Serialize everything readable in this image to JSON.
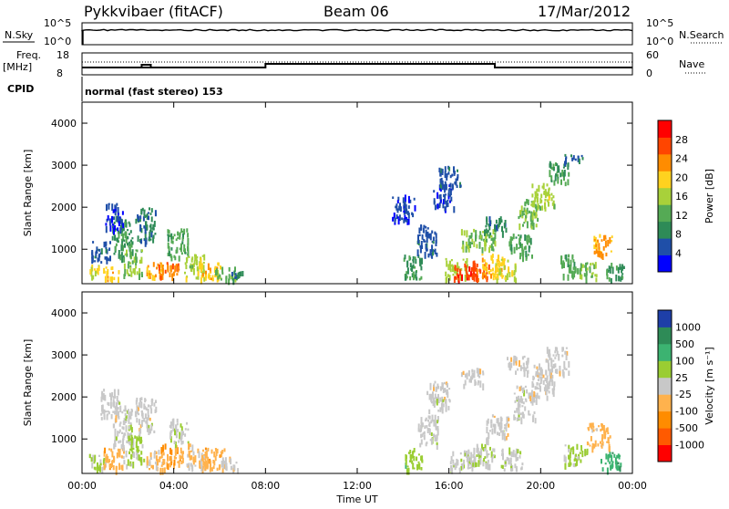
{
  "header": {
    "station": "Pykkvibaer (fitACF)",
    "beam": "Beam 06",
    "date": "17/Mar/2012"
  },
  "top_panels": {
    "nsky_label": "N.Sky",
    "nsearch_label": "N.Search",
    "nsky_ticks": [
      "10^5",
      "10^0"
    ],
    "nsearch_ticks": [
      "10^5",
      "10^0"
    ],
    "freq_label_line1": "Freq.",
    "freq_label_line2": "[MHz]",
    "freq_ticks": [
      "18",
      "8"
    ],
    "nave_label": "Nave",
    "nave_ticks": [
      "60",
      "0"
    ],
    "cpid_label": "CPID",
    "cpid_text": "normal (fast stereo) 153"
  },
  "colors": {
    "power_scale": [
      "#0000ff",
      "#1f4fa8",
      "#2e8b57",
      "#55aa55",
      "#a8d13a",
      "#ffd21f",
      "#ff8c00",
      "#ff4500",
      "#ff0000"
    ],
    "velocity_scale": [
      "#ff0000",
      "#ff5a00",
      "#ff8c00",
      "#ffb24d",
      "#c8c8c8",
      "#9acd32",
      "#3cb371",
      "#2e8b57",
      "#1e3fa8"
    ]
  },
  "chart_data": [
    {
      "type": "heatmap",
      "name": "power",
      "ylabel": "Slant Range [km]",
      "ylim": [
        180,
        4500
      ],
      "yticks": [
        "1000",
        "2000",
        "3000",
        "4000"
      ],
      "xlim": [
        0,
        24
      ],
      "colorbar_label": "Power [dB]",
      "colorbar_ticks": [
        "4",
        "8",
        "12",
        "16",
        "20",
        "24",
        "28"
      ],
      "colorbar_range": [
        0,
        32
      ],
      "cells": [
        [
          0.3,
          0.9,
          350,
          650,
          18
        ],
        [
          0.9,
          1.6,
          300,
          600,
          20
        ],
        [
          1.3,
          2.2,
          800,
          1800,
          10
        ],
        [
          1.8,
          2.6,
          400,
          1000,
          14
        ],
        [
          2.3,
          3.2,
          1200,
          2000,
          8
        ],
        [
          2.8,
          3.5,
          350,
          700,
          22
        ],
        [
          3.2,
          4.2,
          350,
          700,
          24
        ],
        [
          3.7,
          4.6,
          800,
          1500,
          12
        ],
        [
          4.4,
          5.3,
          300,
          900,
          16
        ],
        [
          5.0,
          6.0,
          300,
          700,
          20
        ],
        [
          5.8,
          6.7,
          300,
          600,
          14
        ],
        [
          6.5,
          7.2,
          300,
          500,
          8
        ],
        [
          0.4,
          1.2,
          700,
          1200,
          6
        ],
        [
          1.0,
          1.8,
          1500,
          2100,
          4
        ],
        [
          13.5,
          14.5,
          1700,
          2300,
          4
        ],
        [
          14.0,
          14.8,
          300,
          900,
          10
        ],
        [
          14.6,
          15.5,
          900,
          1600,
          6
        ],
        [
          15.3,
          16.2,
          2000,
          2600,
          4
        ],
        [
          15.8,
          16.8,
          300,
          800,
          16
        ],
        [
          16.2,
          17.2,
          300,
          700,
          28
        ],
        [
          17.0,
          17.8,
          300,
          750,
          26
        ],
        [
          17.4,
          18.4,
          400,
          900,
          20
        ],
        [
          16.5,
          18.0,
          1000,
          1500,
          14
        ],
        [
          18.0,
          19.0,
          300,
          800,
          18
        ],
        [
          18.6,
          19.6,
          800,
          1400,
          12
        ],
        [
          19.0,
          20.0,
          1600,
          2200,
          14
        ],
        [
          19.6,
          20.6,
          2000,
          2600,
          16
        ],
        [
          20.3,
          21.2,
          2600,
          3100,
          10
        ],
        [
          20.8,
          21.5,
          400,
          900,
          12
        ],
        [
          21.3,
          22.4,
          300,
          700,
          14
        ],
        [
          22.3,
          23.1,
          900,
          1400,
          22
        ],
        [
          22.8,
          23.6,
          300,
          700,
          10
        ],
        [
          15.5,
          16.5,
          2500,
          3000,
          6
        ],
        [
          17.5,
          18.5,
          1400,
          1800,
          8
        ],
        [
          21.0,
          21.8,
          3100,
          3300,
          6
        ]
      ]
    },
    {
      "type": "heatmap",
      "name": "velocity",
      "ylabel": "Slant Range [km]",
      "ylim": [
        180,
        4500
      ],
      "yticks": [
        "1000",
        "2000",
        "3000",
        "4000"
      ],
      "xlim": [
        0,
        24
      ],
      "xlabel": "Time UT",
      "xticks": [
        "00:00",
        "04:00",
        "08:00",
        "12:00",
        "16:00",
        "20:00",
        "00:00"
      ],
      "colorbar_label": "Velocity [m s⁻¹]",
      "colorbar_ticks": [
        "-1000",
        "-500",
        "-100",
        "-25",
        "25",
        "100",
        "500",
        "1000"
      ],
      "colorbar_range": [
        -1300,
        1300
      ],
      "cells": [
        [
          0.3,
          1.0,
          300,
          700,
          150
        ],
        [
          0.9,
          1.8,
          300,
          800,
          -300
        ],
        [
          1.3,
          2.2,
          800,
          1800,
          30
        ],
        [
          1.8,
          2.7,
          400,
          1100,
          200
        ],
        [
          2.3,
          3.2,
          1200,
          2000,
          0
        ],
        [
          2.8,
          3.6,
          300,
          800,
          -200
        ],
        [
          3.4,
          4.4,
          400,
          900,
          -400
        ],
        [
          3.8,
          4.6,
          900,
          1500,
          60
        ],
        [
          4.5,
          5.4,
          300,
          900,
          -150
        ],
        [
          5.2,
          6.2,
          300,
          800,
          -300
        ],
        [
          6.0,
          6.8,
          300,
          600,
          0
        ],
        [
          0.8,
          1.6,
          1500,
          2200,
          0
        ],
        [
          14.0,
          14.8,
          300,
          800,
          300
        ],
        [
          14.6,
          15.5,
          900,
          1600,
          10
        ],
        [
          15.0,
          16.0,
          1700,
          2400,
          0
        ],
        [
          16.0,
          17.2,
          300,
          800,
          80
        ],
        [
          17.0,
          18.0,
          400,
          900,
          120
        ],
        [
          17.6,
          18.6,
          1000,
          1600,
          -10
        ],
        [
          18.2,
          19.2,
          300,
          800,
          60
        ],
        [
          18.8,
          19.8,
          1500,
          2300,
          0
        ],
        [
          19.6,
          20.6,
          2000,
          2800,
          -10
        ],
        [
          20.2,
          21.2,
          2600,
          3200,
          0
        ],
        [
          21.0,
          22.0,
          400,
          900,
          200
        ],
        [
          22.0,
          23.0,
          800,
          1400,
          -250
        ],
        [
          22.6,
          23.5,
          300,
          700,
          600
        ],
        [
          16.5,
          17.5,
          2300,
          2700,
          0
        ],
        [
          18.5,
          19.5,
          2600,
          3000,
          0
        ]
      ]
    }
  ]
}
